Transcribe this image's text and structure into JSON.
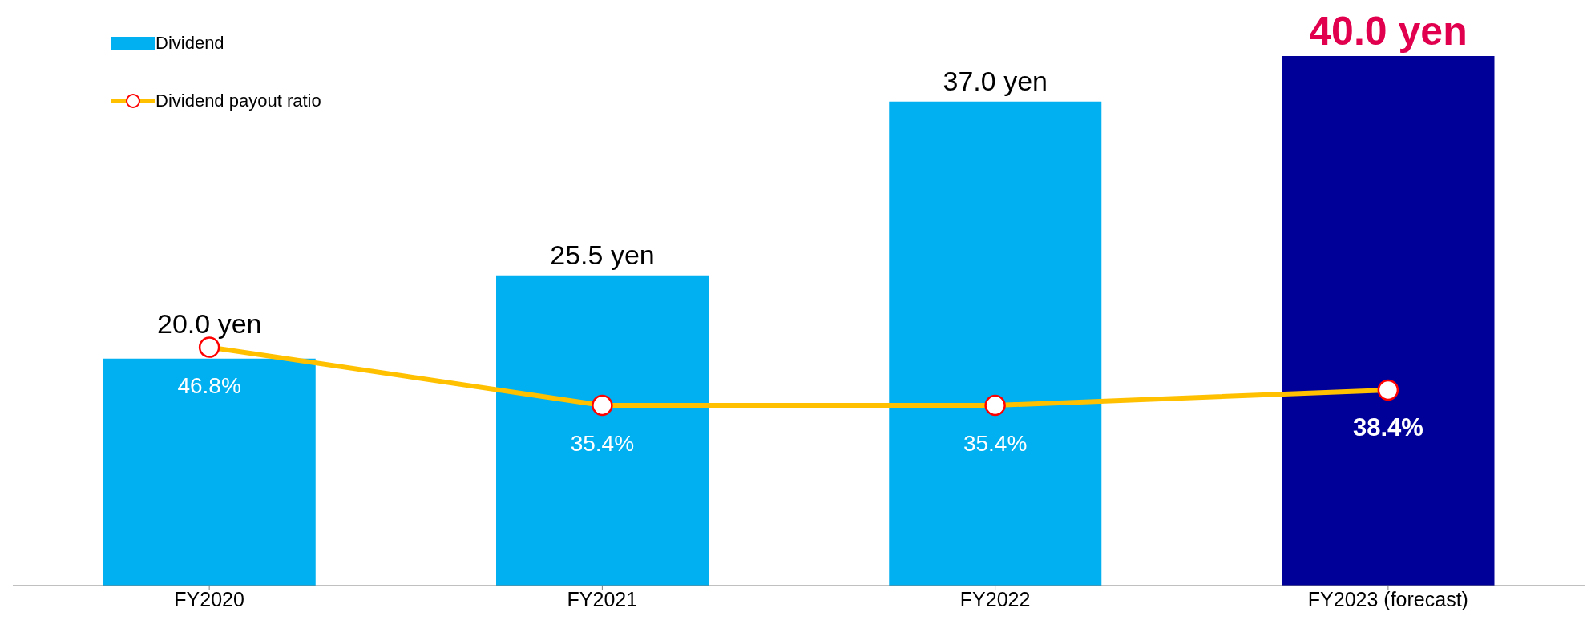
{
  "chart_data": {
    "type": "bar",
    "categories": [
      "FY2020",
      "FY2021",
      "FY2022",
      "FY2023 (forecast)"
    ],
    "ylim": [
      5,
      40
    ],
    "y2lim": [
      0,
      104
    ],
    "legend": "top left",
    "marker": "circle",
    "series": [
      {
        "name": "Dividend",
        "color": "#00b0f0",
        "colors": [
          "#00b0f0",
          "#00b0f0",
          "#00b0f0",
          "#000099"
        ],
        "values": [
          20.0,
          25.5,
          37.0,
          40.0
        ],
        "value_labels": [
          "20.0 yen",
          "25.5 yen",
          "37.0 yen",
          "40.0 yen"
        ]
      },
      {
        "name": "Dividend payout ratio",
        "type": "line",
        "axis": "y2",
        "color": "#ffc000",
        "values": [
          46.8,
          35.4,
          35.4,
          38.4
        ],
        "value_labels": [
          "46.8%",
          "35.4%",
          "35.4%",
          "38.4%"
        ]
      }
    ]
  }
}
